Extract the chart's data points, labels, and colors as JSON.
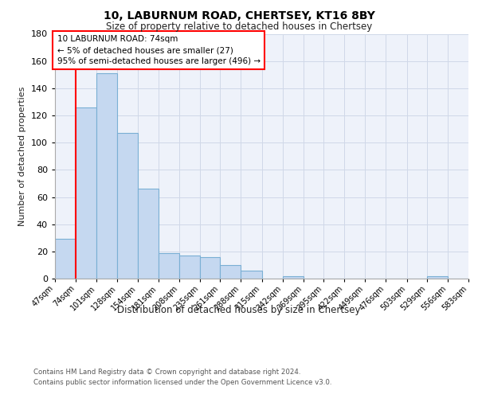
{
  "title_line1": "10, LABURNUM ROAD, CHERTSEY, KT16 8BY",
  "title_line2": "Size of property relative to detached houses in Chertsey",
  "xlabel": "Distribution of detached houses by size in Chertsey",
  "ylabel": "Number of detached properties",
  "bar_color": "#c5d8f0",
  "bar_edge_color": "#7aafd4",
  "grid_color": "#d0d8e8",
  "background_color": "#eef2fa",
  "redline_x": 74,
  "annotation_line1": "10 LABURNUM ROAD: 74sqm",
  "annotation_line2": "← 5% of detached houses are smaller (27)",
  "annotation_line3": "95% of semi-detached houses are larger (496) →",
  "footer_line1": "Contains HM Land Registry data © Crown copyright and database right 2024.",
  "footer_line2": "Contains public sector information licensed under the Open Government Licence v3.0.",
  "bin_edges": [
    47,
    74,
    101,
    128,
    154,
    181,
    208,
    235,
    261,
    288,
    315,
    342,
    369,
    395,
    422,
    449,
    476,
    503,
    529,
    556,
    583
  ],
  "bin_labels": [
    "47sqm",
    "74sqm",
    "101sqm",
    "128sqm",
    "154sqm",
    "181sqm",
    "208sqm",
    "235sqm",
    "261sqm",
    "288sqm",
    "315sqm",
    "342sqm",
    "369sqm",
    "395sqm",
    "422sqm",
    "449sqm",
    "476sqm",
    "503sqm",
    "529sqm",
    "556sqm",
    "583sqm"
  ],
  "bar_heights": [
    29,
    126,
    151,
    107,
    66,
    19,
    17,
    16,
    10,
    6,
    0,
    2,
    0,
    0,
    0,
    0,
    0,
    0,
    2,
    0,
    0
  ],
  "ylim": [
    0,
    180
  ],
  "yticks": [
    0,
    20,
    40,
    60,
    80,
    100,
    120,
    140,
    160,
    180
  ]
}
